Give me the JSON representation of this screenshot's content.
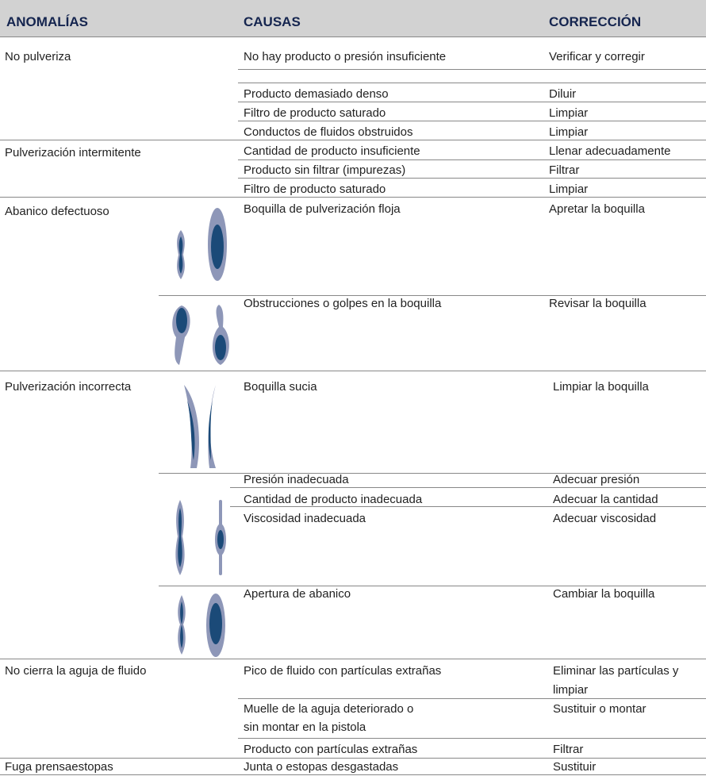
{
  "header": {
    "anomalias": "ANOMALÍAS",
    "causas": "CAUSAS",
    "correccion": "CORRECCIÓN"
  },
  "groups": [
    {
      "anomaly": "No pulveriza",
      "rows": [
        {
          "cause": [
            "No hay producto o presión insuficiente"
          ],
          "correction": [
            "Verificar y corregir"
          ]
        },
        {
          "cause": [
            "Producto demasiado denso"
          ],
          "correction": [
            "Diluir"
          ]
        },
        {
          "cause": [
            "Filtro de producto saturado"
          ],
          "correction": [
            "Limpiar"
          ]
        },
        {
          "cause": [
            "Conductos de fluidos obstruidos"
          ],
          "correction": [
            "Limpiar"
          ]
        }
      ]
    },
    {
      "anomaly": "Pulverización intermitente",
      "rows": [
        {
          "cause": [
            "Cantidad de producto insuficiente"
          ],
          "correction": [
            "Llenar adecuadamente"
          ]
        },
        {
          "cause": [
            "Producto sin filtrar (impurezas)"
          ],
          "correction": [
            "Filtrar"
          ]
        },
        {
          "cause": [
            "Filtro de producto saturado"
          ],
          "correction": [
            "Limpiar"
          ]
        }
      ]
    },
    {
      "anomaly": "Abanico defectuoso",
      "rows": [
        {
          "cause": [
            "Boquilla de pulverización floja"
          ],
          "correction": [
            "Apretar la boquilla"
          ]
        },
        {
          "cause": [
            "Obstrucciones o golpes en la boquilla"
          ],
          "correction": [
            "Revisar la boquilla"
          ]
        }
      ]
    },
    {
      "anomaly": "Pulverización incorrecta",
      "rows": [
        {
          "cause": [
            "Boquilla sucia"
          ],
          "correction": [
            "Limpiar la boquilla"
          ]
        },
        {
          "cause": [
            "Presión inadecuada"
          ],
          "correction": [
            "Adecuar presión"
          ]
        },
        {
          "cause": [
            "Cantidad de producto inadecuada"
          ],
          "correction": [
            "Adecuar la cantidad"
          ]
        },
        {
          "cause": [
            "Viscosidad inadecuada"
          ],
          "correction": [
            "Adecuar viscosidad"
          ]
        },
        {
          "cause": [
            "Apertura de abanico"
          ],
          "correction": [
            "Cambiar la boquilla"
          ]
        }
      ]
    },
    {
      "anomaly": "No cierra la aguja de fluido",
      "rows": [
        {
          "cause": [
            "Pico de fluido con partículas extrañas"
          ],
          "correction": [
            "Eliminar las partículas y",
            "limpiar"
          ]
        },
        {
          "cause": [
            "Muelle de la aguja deteriorado o",
            "sin montar en la pistola"
          ],
          "correction": [
            "Sustituir o montar"
          ]
        },
        {
          "cause": [
            "Producto con partículas extrañas"
          ],
          "correction": [
            "Filtrar"
          ]
        }
      ]
    },
    {
      "anomaly": "Fuga prensaestopas",
      "rows": [
        {
          "cause": [
            "Junta o estopas desgastadas"
          ],
          "correction": [
            "Sustituir"
          ]
        }
      ]
    }
  ]
}
